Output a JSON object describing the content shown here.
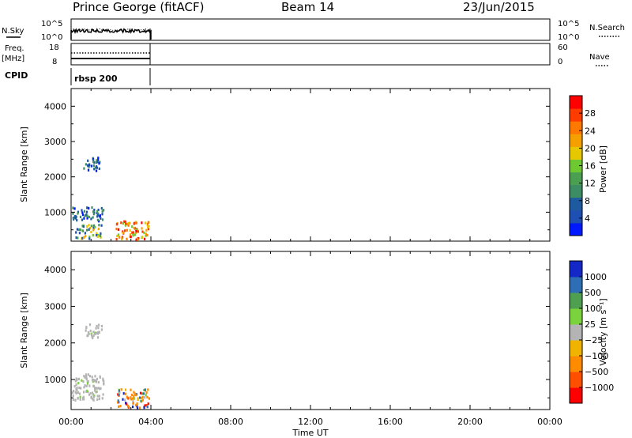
{
  "header": {
    "station": "Prince George (fitACF)",
    "beam": "Beam 14",
    "date": "23/Jun/2015"
  },
  "small_panels": {
    "nsky_label": "N.Sky",
    "nsky_ticks": [
      "10^5",
      "10^0"
    ],
    "nsky_right_ticks": [
      "10^5",
      "10^0"
    ],
    "nsearch_label": "N.Search",
    "freq_label": "Freq.",
    "freq_unit": "[MHz]",
    "freq_ticks": [
      "18",
      "8"
    ],
    "nave_ticks": [
      "60",
      "0"
    ],
    "nave_label": "Nave",
    "cpid_label": "CPID",
    "cpid_value": "rbsp 200"
  },
  "colors": {
    "power_scale": [
      "#0019ff",
      "#1e50b4",
      "#1e5aa0",
      "#3c8c64",
      "#4aa050",
      "#6ec832",
      "#e6c800",
      "#f5a000",
      "#ff7800",
      "#ff3c00",
      "#ff0000"
    ],
    "velocity_scale": [
      "#ff0000",
      "#ff5000",
      "#ff8c00",
      "#f0b400",
      "#b4b4b4",
      "#7ad23c",
      "#4ea050",
      "#2d6eb4",
      "#1428c8"
    ]
  },
  "chart_data": [
    {
      "type": "heatmap",
      "name": "power-panel",
      "xlabel": "Time UT",
      "ylabel": "Slant Range [km]",
      "x_ticks": [
        "00:00",
        "04:00",
        "08:00",
        "12:00",
        "16:00",
        "20:00",
        "00:00"
      ],
      "xlim_hours": [
        0,
        24
      ],
      "ylim": [
        180,
        4500
      ],
      "y_ticks": [
        1000,
        2000,
        3000,
        4000
      ],
      "colorbar": {
        "label": "Power [dB]",
        "ticks": [
          "28",
          "24",
          "20",
          "16",
          "12",
          "8",
          "4"
        ],
        "range": [
          0,
          32
        ]
      },
      "data_extent_hours": [
        0,
        4
      ],
      "features": [
        {
          "t0": 0.6,
          "t1": 1.5,
          "r0": 2100,
          "r1": 2500,
          "level": "low"
        },
        {
          "t0": 0.0,
          "t1": 1.6,
          "r0": 700,
          "r1": 1100,
          "level": "low"
        },
        {
          "t0": 0.2,
          "t1": 1.5,
          "r0": 200,
          "r1": 600,
          "level": "mid"
        },
        {
          "t0": 2.2,
          "t1": 3.9,
          "r0": 180,
          "r1": 700,
          "level": "high"
        }
      ]
    },
    {
      "type": "heatmap",
      "name": "velocity-panel",
      "xlabel": "Time UT",
      "ylabel": "Slant Range [km]",
      "x_ticks": [
        "00:00",
        "04:00",
        "08:00",
        "12:00",
        "16:00",
        "20:00",
        "00:00"
      ],
      "xlim_hours": [
        0,
        24
      ],
      "ylim": [
        180,
        4500
      ],
      "y_ticks": [
        1000,
        2000,
        3000,
        4000
      ],
      "colorbar": {
        "label": "Velocity [m s⁻¹]",
        "ticks": [
          "1000",
          "500",
          "100",
          "25",
          "−25",
          "−100",
          "−500",
          "−1000"
        ]
      },
      "data_extent_hours": [
        0,
        4
      ],
      "features": [
        {
          "t0": 0.6,
          "t1": 1.5,
          "r0": 2100,
          "r1": 2500,
          "level": "grey"
        },
        {
          "t0": 0.0,
          "t1": 1.6,
          "r0": 400,
          "r1": 1100,
          "level": "grey"
        },
        {
          "t0": 2.2,
          "t1": 3.9,
          "r0": 180,
          "r1": 700,
          "level": "mixed"
        }
      ]
    }
  ]
}
